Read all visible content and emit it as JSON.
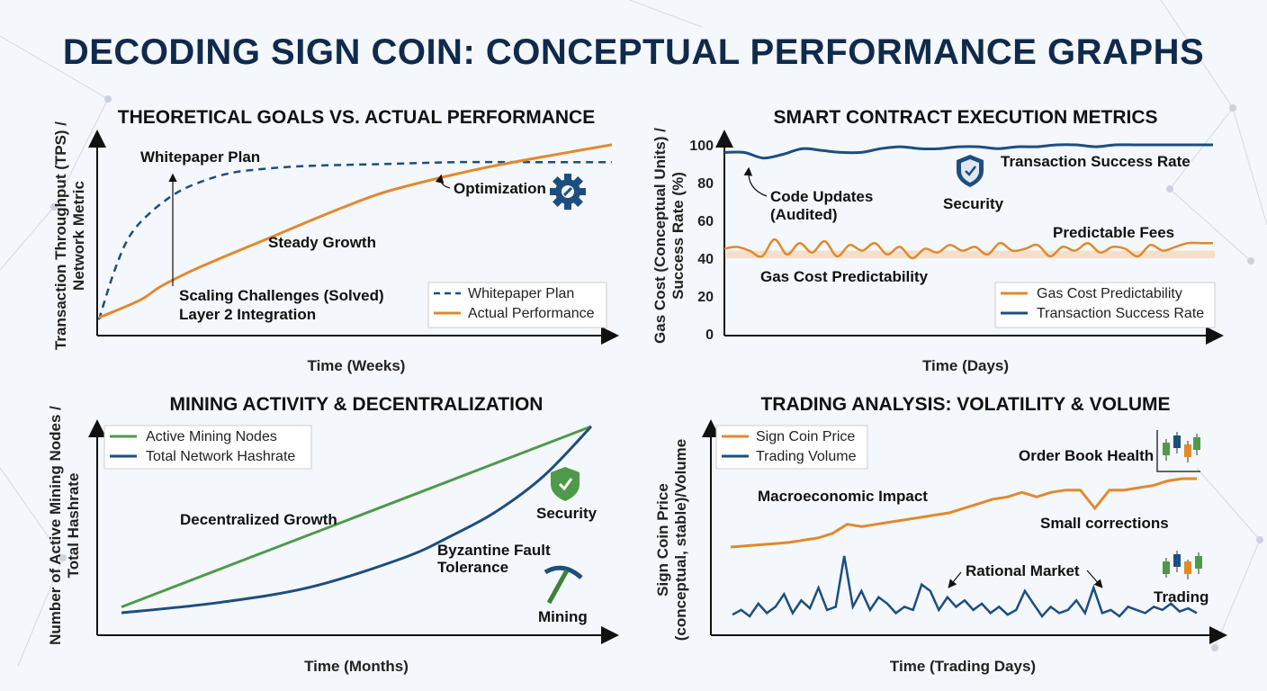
{
  "title": "DECODING SIGN COIN: CONCEPTUAL PERFORMANCE GRAPHS",
  "colors": {
    "navy": "#1d4e7e",
    "orange": "#e08a2e",
    "green": "#4f9a4a",
    "title": "#102a4c",
    "icon": "#1d4e7e"
  },
  "chart_data": [
    {
      "type": "line",
      "title": "THEORETICAL GOALS VS. ACTUAL PERFORMANCE",
      "xlabel": "Time (Weeks)",
      "ylabel_lines": [
        "Transaction Throughput (TPS) /",
        "Network Metric"
      ],
      "xlim": [
        0,
        100
      ],
      "ylim": [
        0,
        100
      ],
      "series": [
        {
          "name": "Whitepaper Plan",
          "style": "dashed",
          "color": "#1d4e7e",
          "x": [
            0,
            3,
            6,
            10,
            15,
            20,
            25,
            30,
            40,
            55,
            70,
            85,
            100
          ],
          "y": [
            5,
            30,
            48,
            60,
            70,
            76,
            80,
            82,
            84,
            85,
            86,
            86,
            86
          ]
        },
        {
          "name": "Actual Performance",
          "style": "solid",
          "color": "#e08a2e",
          "x": [
            0,
            8,
            12,
            18,
            25,
            35,
            45,
            55,
            65,
            75,
            85,
            100
          ],
          "y": [
            6,
            15,
            22,
            30,
            38,
            49,
            60,
            70,
            77,
            83,
            88,
            95
          ]
        }
      ],
      "legend": {
        "position": "bottom-right",
        "entries": [
          "Whitepaper Plan",
          "Actual Performance"
        ]
      },
      "annotations": [
        "Whitepaper Plan",
        "Optimization",
        "Steady Growth",
        "Scaling Challenges (Solved)",
        "Layer 2 Integration"
      ],
      "icons": [
        "gear-icon"
      ]
    },
    {
      "type": "line",
      "title": "SMART CONTRACT EXECUTION METRICS",
      "xlabel": "Time (Days)",
      "ylabel_lines": [
        "Gas Cost (Conceptual Units) /",
        "Success Rate (%)"
      ],
      "ylim": [
        0,
        100
      ],
      "yticks": [
        "0",
        "20",
        "40",
        "60",
        "80",
        "100"
      ],
      "band": [
        40,
        44
      ],
      "series": [
        {
          "name": "Gas Cost Predictability",
          "color": "#e08a2e",
          "y": [
            45,
            46,
            44,
            41,
            50,
            42,
            48,
            43,
            49,
            41,
            47,
            44,
            48,
            42,
            46,
            40,
            45,
            43,
            47,
            44,
            46,
            42,
            48,
            44,
            45,
            47,
            41,
            46,
            44,
            48,
            43,
            46,
            45,
            41,
            47,
            44,
            46,
            48,
            48,
            48
          ]
        },
        {
          "name": "Transaction Success Rate",
          "color": "#1d4e7e",
          "y": [
            96,
            96,
            93,
            95,
            98,
            97,
            96,
            96,
            98,
            99,
            98,
            98,
            99,
            99,
            98,
            99,
            99,
            100,
            100,
            99,
            100,
            100,
            100,
            100,
            100,
            100
          ]
        }
      ],
      "legend": {
        "position": "bottom-right",
        "entries": [
          "Gas Cost Predictability",
          "Transaction Success Rate"
        ]
      },
      "annotations": [
        "Transaction Success Rate",
        "Security",
        "Code Updates",
        "(Audited)",
        "Predictable Fees",
        "Gas Cost Predictability"
      ],
      "icons": [
        "shield-check-icon"
      ]
    },
    {
      "type": "line",
      "title": "MINING ACTIVITY & DECENTRALIZATION",
      "xlabel": "Time (Months)",
      "ylabel_lines": [
        "Number of Active Mining Nodes /",
        "Total Hashrate"
      ],
      "xlim": [
        0,
        100
      ],
      "ylim": [
        0,
        100
      ],
      "series": [
        {
          "name": "Active Mining Nodes",
          "color": "#4f9a4a",
          "x": [
            0,
            25,
            50,
            75,
            100
          ],
          "y": [
            8,
            31,
            54,
            77,
            100
          ]
        },
        {
          "name": "Total Network Hashrate",
          "color": "#1d4e7e",
          "x": [
            0,
            20,
            40,
            60,
            70,
            80,
            90,
            100
          ],
          "y": [
            5,
            10,
            18,
            33,
            44,
            57,
            75,
            100
          ]
        }
      ],
      "legend": {
        "position": "top-left",
        "entries": [
          "Active Mining Nodes",
          "Total Network Hashrate"
        ]
      },
      "annotations": [
        "Decentralized Growth",
        "Byzantine Fault",
        "Tolerance",
        "Security",
        "Mining"
      ],
      "icons": [
        "shield-check-icon",
        "pickaxe-icon"
      ]
    },
    {
      "type": "line",
      "title": "TRADING ANALYSIS: VOLATILITY & VOLUME",
      "xlabel": "Time (Trading Days)",
      "ylabel_lines": [
        "Sign Coin Price",
        "(conceptual, stable)/Volume"
      ],
      "series": [
        {
          "name": "Sign Coin Price",
          "color": "#e08a2e",
          "y": [
            60,
            60.5,
            61,
            61.5,
            62,
            63,
            64,
            66,
            70,
            69,
            70,
            71,
            72,
            73,
            74,
            75,
            77,
            79,
            81,
            82,
            84,
            82,
            84,
            85,
            85,
            77,
            85,
            85,
            86,
            87,
            89,
            90,
            90
          ]
        },
        {
          "name": "Trading Volume",
          "color": "#1d4e7e",
          "y": [
            5,
            8,
            4,
            12,
            6,
            10,
            18,
            6,
            14,
            9,
            22,
            8,
            10,
            42,
            10,
            20,
            8,
            16,
            12,
            6,
            10,
            8,
            24,
            20,
            8,
            16,
            10,
            14,
            8,
            12,
            6,
            10,
            5,
            8,
            20,
            12,
            4,
            10,
            6,
            8,
            14,
            6,
            22,
            6,
            8,
            4,
            10,
            8,
            6,
            10,
            8,
            12,
            7,
            9,
            6
          ]
        }
      ],
      "legend": {
        "position": "top-left",
        "entries": [
          "Sign Coin Price",
          "Trading Volume"
        ]
      },
      "annotations": [
        "Order Book Health",
        "Macroeconomic Impact",
        "Small corrections",
        "Rational Market",
        "Trading"
      ],
      "icons": [
        "candlestick-icon",
        "candlestick-icon"
      ]
    }
  ]
}
